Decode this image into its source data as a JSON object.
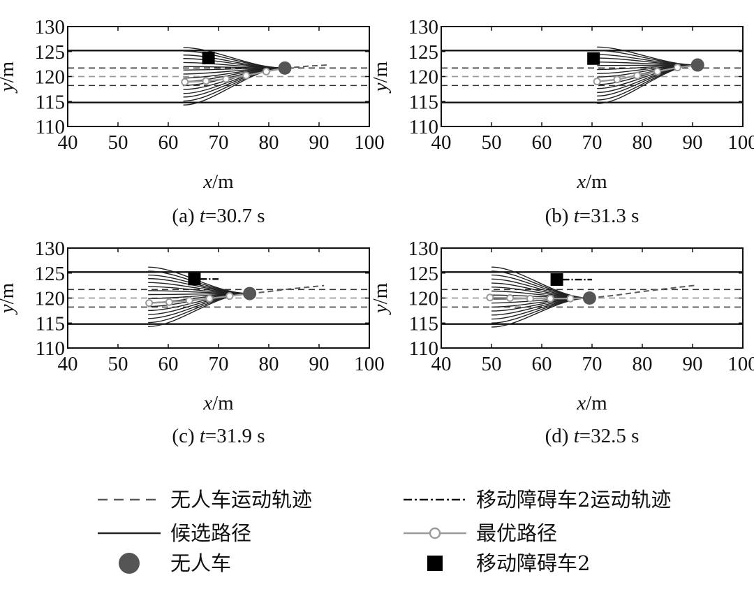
{
  "axis_labels": {
    "x_var": "x",
    "x_unit": "/m",
    "y_var": "y",
    "y_unit": "/m"
  },
  "legend": {
    "items": [
      {
        "key": "ugv_trajectory",
        "label": "无人车运动轨迹",
        "color": "#5a5a5a",
        "style": "dashed"
      },
      {
        "key": "obstacle_trajectory",
        "label": "移动障碍车2运动轨迹",
        "color": "#111111",
        "style": "dash-dot"
      },
      {
        "key": "candidate_paths",
        "label": "候选路径",
        "color": "#222222",
        "style": "solid"
      },
      {
        "key": "optimal_path",
        "label": "最优路径",
        "color": "#9a9a9a",
        "style": "line-circle"
      },
      {
        "key": "ugv",
        "label": "无人车",
        "color": "#555555",
        "style": "filled-circle"
      },
      {
        "key": "obstacle",
        "label": "移动障碍车2",
        "color": "#000000",
        "style": "filled-square"
      }
    ]
  },
  "colors": {
    "frame": "#111111",
    "lane_border": "#111111",
    "lane_divider": "#333333",
    "centerline": "#9a9a9a",
    "candidate": "#222222",
    "optimal": "#9a9a9a",
    "ugv": "#555555",
    "ugv_trajectory": "#5a5a5a",
    "obstacle": "#000000"
  },
  "chart_data": [
    {
      "id": "a",
      "type": "line",
      "caption_prefix": "(a) ",
      "caption_var": "t",
      "caption_value": "=30.7 s",
      "xlim": [
        40,
        100
      ],
      "ylim": [
        110,
        130
      ],
      "xticks": [
        40,
        50,
        60,
        70,
        80,
        90,
        100
      ],
      "yticks": [
        110,
        115,
        120,
        125,
        130
      ],
      "lane_borders": [
        125.2,
        114.8
      ],
      "lane_dividers": [
        121.7,
        118.2
      ],
      "centerline": 120,
      "ugv": {
        "x": 83.2,
        "y": 121.7
      },
      "ugv_trajectory": [
        [
          83.2,
          121.7
        ],
        [
          86,
          121.9
        ],
        [
          88,
          122.1
        ],
        [
          90,
          122.2
        ],
        [
          91.5,
          122.3
        ]
      ],
      "obstacle": {
        "x": 68,
        "y": 123.7
      },
      "obstacle_trajectory": [],
      "candidate_end_x": 63,
      "candidate_end_y": [
        125.8,
        125.1,
        124.3,
        123.6,
        122.8,
        122.0,
        121.3,
        120.5,
        119.7,
        119.0,
        118.2,
        117.4,
        116.6,
        115.9,
        115.1,
        114.3
      ],
      "optimal_path": [
        [
          63.3,
          118.9
        ],
        [
          67.5,
          119.1
        ],
        [
          71.5,
          119.5
        ],
        [
          75.5,
          120.2
        ],
        [
          79.5,
          121.0
        ],
        [
          83.2,
          121.7
        ]
      ]
    },
    {
      "id": "b",
      "type": "line",
      "caption_prefix": "(b) ",
      "caption_var": "t",
      "caption_value": "=31.3 s",
      "xlim": [
        40,
        100
      ],
      "ylim": [
        110,
        130
      ],
      "xticks": [
        40,
        50,
        60,
        70,
        80,
        90,
        100
      ],
      "yticks": [
        110,
        115,
        120,
        125,
        130
      ],
      "lane_borders": [
        125.2,
        114.8
      ],
      "lane_dividers": [
        121.7,
        118.2
      ],
      "centerline": 120,
      "ugv": {
        "x": 91,
        "y": 122.3
      },
      "ugv_trajectory": [],
      "obstacle": {
        "x": 70.3,
        "y": 123.6
      },
      "obstacle_trajectory": [],
      "candidate_end_x": 71,
      "candidate_end_y": [
        125.9,
        125.2,
        124.4,
        123.7,
        122.9,
        122.2,
        121.4,
        120.6,
        119.9,
        119.1,
        118.4,
        117.6,
        116.8,
        116.1,
        115.3,
        114.6
      ],
      "optimal_path": [
        [
          71,
          119
        ],
        [
          75,
          119.4
        ],
        [
          79,
          120.2
        ],
        [
          83,
          121.0
        ],
        [
          87,
          121.8
        ],
        [
          91,
          122.3
        ]
      ]
    },
    {
      "id": "c",
      "type": "line",
      "caption_prefix": "(c) ",
      "caption_var": "t",
      "caption_value": "=31.9 s",
      "xlim": [
        40,
        100
      ],
      "ylim": [
        110,
        130
      ],
      "xticks": [
        40,
        50,
        60,
        70,
        80,
        90,
        100
      ],
      "yticks": [
        110,
        115,
        120,
        125,
        130
      ],
      "lane_borders": [
        125.2,
        114.8
      ],
      "lane_dividers": [
        121.7,
        118.2
      ],
      "centerline": 120,
      "ugv": {
        "x": 76.2,
        "y": 120.9
      },
      "ugv_trajectory": [
        [
          76.2,
          120.9
        ],
        [
          80,
          121.3
        ],
        [
          84,
          121.8
        ],
        [
          88,
          122.2
        ],
        [
          91,
          122.5
        ]
      ],
      "obstacle": {
        "x": 65.2,
        "y": 123.8
      },
      "obstacle_trajectory": [
        [
          66.3,
          123.8
        ],
        [
          70,
          123.8
        ]
      ],
      "candidate_end_x": 56,
      "candidate_end_y": [
        126.2,
        125.4,
        124.6,
        123.9,
        123.1,
        122.3,
        121.5,
        120.7,
        119.9,
        119.1,
        118.3,
        117.5,
        116.7,
        115.9,
        115.1,
        114.3
      ],
      "optimal_path": [
        [
          56.2,
          119
        ],
        [
          60.2,
          119.2
        ],
        [
          64.2,
          119.5
        ],
        [
          68.2,
          119.9
        ],
        [
          72.2,
          120.4
        ],
        [
          76.2,
          120.9
        ]
      ]
    },
    {
      "id": "d",
      "type": "line",
      "caption_prefix": "(d) ",
      "caption_var": "t",
      "caption_value": "=32.5 s",
      "xlim": [
        40,
        100
      ],
      "ylim": [
        110,
        130
      ],
      "xticks": [
        40,
        50,
        60,
        70,
        80,
        90,
        100
      ],
      "yticks": [
        110,
        115,
        120,
        125,
        130
      ],
      "lane_borders": [
        125.2,
        114.8
      ],
      "lane_dividers": [
        121.7,
        118.2
      ],
      "centerline": 120,
      "ugv": {
        "x": 69.5,
        "y": 120
      },
      "ugv_trajectory": [
        [
          69.5,
          120
        ],
        [
          75,
          120.6
        ],
        [
          80,
          121.3
        ],
        [
          85,
          121.9
        ],
        [
          91,
          122.6
        ]
      ],
      "obstacle": {
        "x": 63,
        "y": 123.7
      },
      "obstacle_trajectory": [
        [
          64.1,
          123.7
        ],
        [
          70,
          123.7
        ]
      ],
      "candidate_end_x": 50,
      "candidate_end_y": [
        126.2,
        125.4,
        124.6,
        123.8,
        123.0,
        122.2,
        121.4,
        120.6,
        119.8,
        119.0,
        118.2,
        117.4,
        116.6,
        115.8,
        115.0,
        114.2
      ],
      "optimal_path": [
        [
          49.7,
          120.1
        ],
        [
          53.7,
          120.0
        ],
        [
          57.7,
          119.9
        ],
        [
          61.7,
          119.9
        ],
        [
          65.7,
          119.9
        ],
        [
          69.5,
          120
        ]
      ]
    }
  ]
}
